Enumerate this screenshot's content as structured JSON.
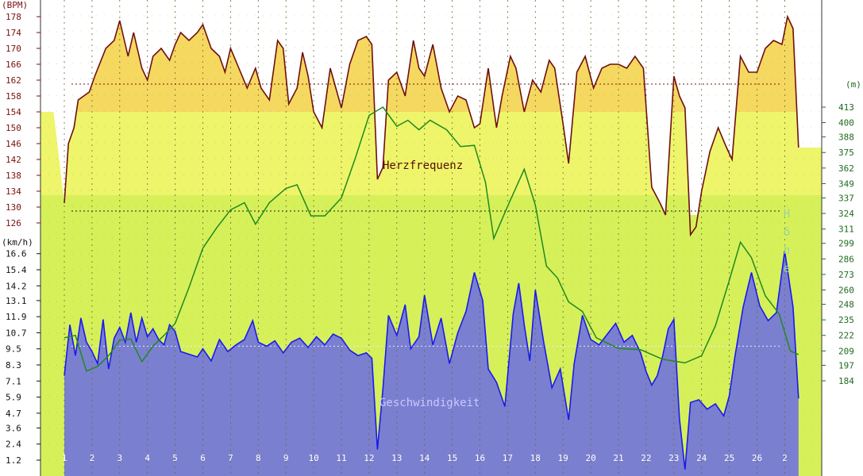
{
  "chart_data": {
    "type": "area",
    "x_ticks": [
      "1",
      "2",
      "3",
      "4",
      "5",
      "6",
      "7",
      "8",
      "9",
      "10",
      "11",
      "12",
      "13",
      "14",
      "15",
      "16",
      "17",
      "18",
      "19",
      "20",
      "21",
      "22",
      "23",
      "24",
      "25",
      "26",
      "2"
    ],
    "heart_rate": {
      "unit_label": "(BPM)",
      "title": "Herzfrequenz",
      "ticks": [
        126,
        130,
        134,
        138,
        142,
        146,
        150,
        154,
        158,
        162,
        166,
        170,
        174,
        178
      ],
      "zones": [
        {
          "from": 154,
          "to": 182,
          "color": "#f5d860"
        },
        {
          "from": 133,
          "to": 154,
          "color": "#eef56a"
        },
        {
          "from": 120,
          "to": 133,
          "color": "#d6f05a"
        }
      ],
      "reference_lines": [
        161,
        129
      ],
      "line_color": "#6e1010",
      "fill_color": "#f5d860",
      "points": [
        [
          0,
          131
        ],
        [
          0.15,
          146
        ],
        [
          0.35,
          150
        ],
        [
          0.5,
          157
        ],
        [
          0.9,
          159
        ],
        [
          1.1,
          163
        ],
        [
          1.5,
          170
        ],
        [
          1.8,
          172
        ],
        [
          2.0,
          177
        ],
        [
          2.3,
          168
        ],
        [
          2.5,
          174
        ],
        [
          2.8,
          165
        ],
        [
          3.0,
          162
        ],
        [
          3.2,
          168
        ],
        [
          3.5,
          170
        ],
        [
          3.8,
          167
        ],
        [
          4.0,
          171
        ],
        [
          4.2,
          174
        ],
        [
          4.5,
          172
        ],
        [
          4.8,
          174
        ],
        [
          5.0,
          176
        ],
        [
          5.3,
          170
        ],
        [
          5.6,
          168
        ],
        [
          5.8,
          164
        ],
        [
          6.0,
          170
        ],
        [
          6.3,
          165
        ],
        [
          6.6,
          160
        ],
        [
          6.9,
          165
        ],
        [
          7.1,
          160
        ],
        [
          7.4,
          157
        ],
        [
          7.7,
          172
        ],
        [
          7.9,
          170
        ],
        [
          8.1,
          156
        ],
        [
          8.4,
          160
        ],
        [
          8.6,
          169
        ],
        [
          8.8,
          163
        ],
        [
          9.0,
          154
        ],
        [
          9.3,
          150
        ],
        [
          9.6,
          165
        ],
        [
          9.8,
          160
        ],
        [
          10.0,
          155
        ],
        [
          10.3,
          166
        ],
        [
          10.6,
          172
        ],
        [
          10.9,
          173
        ],
        [
          11.1,
          171
        ],
        [
          11.3,
          137
        ],
        [
          11.5,
          140
        ],
        [
          11.7,
          162
        ],
        [
          12.0,
          164
        ],
        [
          12.3,
          158
        ],
        [
          12.6,
          172
        ],
        [
          12.8,
          165
        ],
        [
          13.0,
          163
        ],
        [
          13.3,
          171
        ],
        [
          13.6,
          160
        ],
        [
          13.9,
          154
        ],
        [
          14.2,
          158
        ],
        [
          14.5,
          157
        ],
        [
          14.8,
          150
        ],
        [
          15.0,
          151
        ],
        [
          15.3,
          165
        ],
        [
          15.6,
          150
        ],
        [
          15.8,
          158
        ],
        [
          16.1,
          168
        ],
        [
          16.3,
          165
        ],
        [
          16.6,
          154
        ],
        [
          16.9,
          162
        ],
        [
          17.2,
          159
        ],
        [
          17.5,
          167
        ],
        [
          17.7,
          165
        ],
        [
          18.0,
          151
        ],
        [
          18.2,
          141
        ],
        [
          18.5,
          164
        ],
        [
          18.8,
          168
        ],
        [
          19.1,
          160
        ],
        [
          19.4,
          165
        ],
        [
          19.7,
          166
        ],
        [
          20.0,
          166
        ],
        [
          20.3,
          165
        ],
        [
          20.6,
          168
        ],
        [
          20.9,
          165
        ],
        [
          21.2,
          135
        ],
        [
          21.5,
          131
        ],
        [
          21.7,
          128
        ],
        [
          22.0,
          163
        ],
        [
          22.2,
          158
        ],
        [
          22.4,
          155
        ],
        [
          22.6,
          123
        ],
        [
          22.8,
          125
        ],
        [
          23.0,
          134
        ],
        [
          23.3,
          144
        ],
        [
          23.6,
          150
        ],
        [
          23.9,
          145
        ],
        [
          24.1,
          142
        ],
        [
          24.4,
          168
        ],
        [
          24.7,
          164
        ],
        [
          25.0,
          164
        ],
        [
          25.3,
          170
        ],
        [
          25.6,
          172
        ],
        [
          25.9,
          171
        ],
        [
          26.1,
          178
        ],
        [
          26.3,
          175
        ],
        [
          26.5,
          145
        ]
      ]
    },
    "speed": {
      "unit_label": "(km/h)",
      "title": "Geschwindigkeit",
      "ticks": [
        1.2,
        2.4,
        3.6,
        4.7,
        5.9,
        7.1,
        8.3,
        9.5,
        10.7,
        11.9,
        13.1,
        14.2,
        15.4,
        16.6
      ],
      "reference_line": 9.7,
      "line_color": "#1a1aee",
      "fill_color": "#7b7fd0",
      "points": [
        [
          0,
          7.5
        ],
        [
          0.2,
          11.3
        ],
        [
          0.4,
          9.0
        ],
        [
          0.6,
          11.8
        ],
        [
          0.8,
          10.0
        ],
        [
          1.0,
          9.3
        ],
        [
          1.2,
          8.4
        ],
        [
          1.4,
          11.7
        ],
        [
          1.6,
          8.0
        ],
        [
          1.8,
          10.3
        ],
        [
          2.0,
          11.1
        ],
        [
          2.2,
          10.0
        ],
        [
          2.4,
          12.2
        ],
        [
          2.6,
          10.0
        ],
        [
          2.8,
          11.8
        ],
        [
          3.0,
          10.4
        ],
        [
          3.2,
          11.0
        ],
        [
          3.4,
          10.2
        ],
        [
          3.6,
          9.8
        ],
        [
          3.8,
          11.3
        ],
        [
          4.0,
          10.8
        ],
        [
          4.2,
          9.3
        ],
        [
          4.5,
          9.1
        ],
        [
          4.8,
          8.9
        ],
        [
          5.0,
          9.5
        ],
        [
          5.3,
          8.6
        ],
        [
          5.6,
          10.2
        ],
        [
          5.9,
          9.3
        ],
        [
          6.2,
          9.8
        ],
        [
          6.5,
          10.2
        ],
        [
          6.8,
          11.6
        ],
        [
          7.0,
          10.0
        ],
        [
          7.3,
          9.7
        ],
        [
          7.6,
          10.1
        ],
        [
          7.9,
          9.2
        ],
        [
          8.2,
          10.0
        ],
        [
          8.5,
          10.3
        ],
        [
          8.8,
          9.6
        ],
        [
          9.1,
          10.4
        ],
        [
          9.4,
          9.8
        ],
        [
          9.7,
          10.6
        ],
        [
          10.0,
          10.3
        ],
        [
          10.3,
          9.4
        ],
        [
          10.6,
          9.0
        ],
        [
          10.9,
          9.2
        ],
        [
          11.1,
          8.8
        ],
        [
          11.3,
          2.0
        ],
        [
          11.5,
          6.5
        ],
        [
          11.7,
          12.0
        ],
        [
          12.0,
          10.5
        ],
        [
          12.3,
          12.8
        ],
        [
          12.5,
          9.5
        ],
        [
          12.8,
          10.4
        ],
        [
          13.0,
          13.5
        ],
        [
          13.3,
          9.8
        ],
        [
          13.6,
          11.8
        ],
        [
          13.9,
          8.4
        ],
        [
          14.2,
          10.7
        ],
        [
          14.5,
          12.3
        ],
        [
          14.8,
          15.2
        ],
        [
          15.1,
          13.1
        ],
        [
          15.3,
          8.0
        ],
        [
          15.6,
          7.0
        ],
        [
          15.9,
          5.2
        ],
        [
          16.2,
          12.1
        ],
        [
          16.4,
          14.4
        ],
        [
          16.6,
          11.3
        ],
        [
          16.8,
          8.6
        ],
        [
          17.0,
          13.9
        ],
        [
          17.3,
          10.0
        ],
        [
          17.6,
          6.6
        ],
        [
          17.9,
          8.0
        ],
        [
          18.2,
          4.2
        ],
        [
          18.4,
          8.4
        ],
        [
          18.7,
          12.0
        ],
        [
          19.0,
          10.2
        ],
        [
          19.3,
          9.8
        ],
        [
          19.6,
          10.6
        ],
        [
          19.9,
          11.4
        ],
        [
          20.2,
          10.0
        ],
        [
          20.5,
          10.5
        ],
        [
          20.8,
          9.2
        ],
        [
          21.0,
          7.8
        ],
        [
          21.2,
          6.8
        ],
        [
          21.4,
          7.5
        ],
        [
          21.6,
          9.0
        ],
        [
          21.8,
          11.0
        ],
        [
          22.0,
          11.7
        ],
        [
          22.2,
          4.3
        ],
        [
          22.4,
          0.5
        ],
        [
          22.6,
          5.5
        ],
        [
          22.9,
          5.7
        ],
        [
          23.2,
          5.0
        ],
        [
          23.5,
          5.4
        ],
        [
          23.8,
          4.5
        ],
        [
          24.0,
          6.0
        ],
        [
          24.2,
          8.9
        ],
        [
          24.5,
          12.6
        ],
        [
          24.8,
          15.2
        ],
        [
          25.1,
          12.7
        ],
        [
          25.4,
          11.6
        ],
        [
          25.7,
          12.2
        ],
        [
          26.0,
          16.8
        ],
        [
          26.3,
          12.6
        ],
        [
          26.5,
          5.8
        ]
      ]
    },
    "altitude": {
      "unit_label": "(m)",
      "title": "Höhe",
      "ticks": [
        184,
        197,
        209,
        222,
        235,
        248,
        260,
        273,
        286,
        299,
        311,
        324,
        337,
        349,
        362,
        375,
        388,
        400,
        413
      ],
      "line_color": "#1f8a1f",
      "points": [
        [
          0,
          220
        ],
        [
          0.4,
          222
        ],
        [
          0.8,
          192
        ],
        [
          1.2,
          196
        ],
        [
          1.6,
          205
        ],
        [
          2.0,
          218
        ],
        [
          2.4,
          219
        ],
        [
          2.8,
          200
        ],
        [
          3.2,
          213
        ],
        [
          3.6,
          222
        ],
        [
          4.0,
          232
        ],
        [
          4.5,
          262
        ],
        [
          5.0,
          295
        ],
        [
          5.5,
          312
        ],
        [
          6.0,
          327
        ],
        [
          6.5,
          333
        ],
        [
          6.9,
          315
        ],
        [
          7.4,
          333
        ],
        [
          8.0,
          345
        ],
        [
          8.4,
          348
        ],
        [
          8.9,
          322
        ],
        [
          9.4,
          322
        ],
        [
          10.0,
          337
        ],
        [
          10.5,
          370
        ],
        [
          11.0,
          406
        ],
        [
          11.5,
          413
        ],
        [
          12.0,
          397
        ],
        [
          12.4,
          402
        ],
        [
          12.8,
          394
        ],
        [
          13.2,
          402
        ],
        [
          13.8,
          394
        ],
        [
          14.3,
          380
        ],
        [
          14.8,
          381
        ],
        [
          15.2,
          350
        ],
        [
          15.5,
          303
        ],
        [
          16.0,
          330
        ],
        [
          16.6,
          361
        ],
        [
          17.0,
          331
        ],
        [
          17.4,
          280
        ],
        [
          17.8,
          270
        ],
        [
          18.2,
          250
        ],
        [
          18.7,
          242
        ],
        [
          19.2,
          220
        ],
        [
          20.0,
          211
        ],
        [
          20.8,
          210
        ],
        [
          21.6,
          202
        ],
        [
          22.4,
          199
        ],
        [
          23.0,
          205
        ],
        [
          23.5,
          230
        ],
        [
          24.0,
          268
        ],
        [
          24.4,
          300
        ],
        [
          24.8,
          287
        ],
        [
          25.3,
          255
        ],
        [
          25.8,
          240
        ],
        [
          26.2,
          209
        ],
        [
          26.5,
          206
        ]
      ]
    }
  }
}
